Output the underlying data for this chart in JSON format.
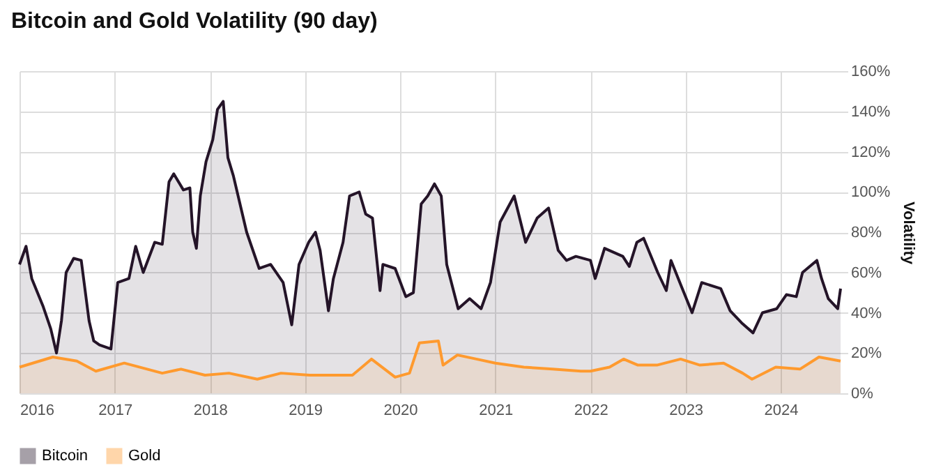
{
  "chart_data": {
    "type": "area",
    "title": "Bitcoin and Gold Volatility (90 day)",
    "ylabel": "Volatility",
    "xlim": [
      "2016-01-01",
      "2024-08-18"
    ],
    "xticks": [
      {
        "value": "2016-01-01",
        "label": "2016"
      },
      {
        "value": "2017-01-01",
        "label": "2017"
      },
      {
        "value": "2018-01-01",
        "label": "2018"
      },
      {
        "value": "2019-01-01",
        "label": "2019"
      },
      {
        "value": "2020-01-01",
        "label": "2020"
      },
      {
        "value": "2021-01-01",
        "label": "2021"
      },
      {
        "value": "2022-01-01",
        "label": "2022"
      },
      {
        "value": "2023-01-01",
        "label": "2023"
      },
      {
        "value": "2024-01-01",
        "label": "2024"
      }
    ],
    "ylim": [
      0,
      160
    ],
    "yticks": [
      {
        "value": 0,
        "label": "0%"
      },
      {
        "value": 20,
        "label": "20%"
      },
      {
        "value": 40,
        "label": "40%"
      },
      {
        "value": 60,
        "label": "60%"
      },
      {
        "value": 80,
        "label": "80%"
      },
      {
        "value": 100,
        "label": "100%"
      },
      {
        "value": 120,
        "label": "120%"
      },
      {
        "value": 140,
        "label": "140%"
      },
      {
        "value": 160,
        "label": "160%"
      }
    ],
    "grid": true,
    "legend": "bottom",
    "series": [
      {
        "name": "Bitcoin",
        "color": "#241428",
        "x": [
          "2016-01-01",
          "2016-01-26",
          "2016-02-17",
          "2016-04-01",
          "2016-04-30",
          "2016-05-22",
          "2016-06-10",
          "2016-06-28",
          "2016-07-27",
          "2016-08-25",
          "2016-09-24",
          "2016-10-12",
          "2016-11-03",
          "2016-12-17",
          "2017-01-12",
          "2017-02-24",
          "2017-03-22",
          "2017-04-20",
          "2017-06-03",
          "2017-07-02",
          "2017-07-28",
          "2017-08-15",
          "2017-09-21",
          "2017-10-16",
          "2017-10-27",
          "2017-11-10",
          "2017-11-25",
          "2017-12-17",
          "2018-01-12",
          "2018-01-30",
          "2018-02-21",
          "2018-03-11",
          "2018-04-01",
          "2018-05-22",
          "2018-07-09",
          "2018-08-22",
          "2018-10-09",
          "2018-11-11",
          "2018-12-09",
          "2019-01-15",
          "2019-02-10",
          "2019-02-28",
          "2019-04-01",
          "2019-04-20",
          "2019-05-27",
          "2019-06-21",
          "2019-07-28",
          "2019-08-22",
          "2019-09-17",
          "2019-10-16",
          "2019-10-27",
          "2019-12-13",
          "2020-01-23",
          "2020-02-21",
          "2020-03-22",
          "2020-04-16",
          "2020-05-12",
          "2020-06-07",
          "2020-06-28",
          "2020-08-11",
          "2020-09-24",
          "2020-11-07",
          "2020-12-13",
          "2021-01-19",
          "2021-03-14",
          "2021-04-27",
          "2021-06-10",
          "2021-07-24",
          "2021-08-30",
          "2021-10-01",
          "2021-11-06",
          "2022-01-01",
          "2022-01-19",
          "2022-02-24",
          "2022-05-05",
          "2022-05-30",
          "2022-06-28",
          "2022-07-24",
          "2022-09-16",
          "2022-10-19",
          "2022-11-06",
          "2022-12-13",
          "2023-01-26",
          "2023-03-04",
          "2023-05-16",
          "2023-06-21",
          "2023-08-04",
          "2023-09-17",
          "2023-10-23",
          "2023-12-17",
          "2024-01-23",
          "2024-03-01",
          "2024-03-25",
          "2024-05-19",
          "2024-06-06",
          "2024-07-02",
          "2024-08-07",
          "2024-08-18"
        ],
        "values": [
          64,
          73,
          57,
          43,
          32,
          20,
          36,
          60,
          67,
          66,
          36,
          26,
          24,
          22,
          55,
          57,
          73,
          60,
          75,
          74,
          105,
          109,
          101,
          102,
          80,
          72,
          98,
          115,
          126,
          141,
          145,
          117,
          108,
          80,
          62,
          64,
          55,
          34,
          64,
          75,
          80,
          71,
          41,
          57,
          75,
          98,
          100,
          89,
          87,
          51,
          64,
          62,
          48,
          50,
          94,
          98,
          104,
          98,
          64,
          42,
          47,
          42,
          55,
          85,
          98,
          75,
          87,
          92,
          71,
          66,
          68,
          66,
          57,
          72,
          68,
          63,
          75,
          77,
          60,
          51,
          66,
          54,
          40,
          55,
          52,
          41,
          35,
          30,
          40,
          42,
          49,
          48,
          60,
          66,
          57,
          47,
          42,
          52
        ]
      },
      {
        "name": "Gold",
        "color": "#ff9a2e",
        "x": [
          "2016-01-01",
          "2016-05-08",
          "2016-08-08",
          "2016-10-20",
          "2017-02-06",
          "2017-07-02",
          "2017-09-12",
          "2017-12-13",
          "2018-03-15",
          "2018-07-02",
          "2018-10-01",
          "2019-01-19",
          "2019-04-20",
          "2019-07-02",
          "2019-09-13",
          "2019-12-13",
          "2020-02-06",
          "2020-03-15",
          "2020-05-27",
          "2020-06-14",
          "2020-08-08",
          "2020-10-20",
          "2021-01-01",
          "2021-04-20",
          "2021-08-08",
          "2021-11-25",
          "2022-01-01",
          "2022-03-15",
          "2022-05-08",
          "2022-07-02",
          "2022-09-13",
          "2022-12-13",
          "2023-02-25",
          "2023-05-27",
          "2023-08-08",
          "2023-09-13",
          "2023-12-13",
          "2024-03-15",
          "2024-05-27",
          "2024-08-18"
        ],
        "values": [
          13,
          18,
          16,
          11,
          15,
          10,
          12,
          9,
          10,
          7,
          10,
          9,
          9,
          9,
          17,
          8,
          10,
          25,
          26,
          14,
          19,
          17,
          15,
          13,
          12,
          11,
          11,
          13,
          17,
          14,
          14,
          17,
          14,
          15,
          10,
          7,
          13,
          12,
          18,
          16
        ]
      }
    ]
  }
}
